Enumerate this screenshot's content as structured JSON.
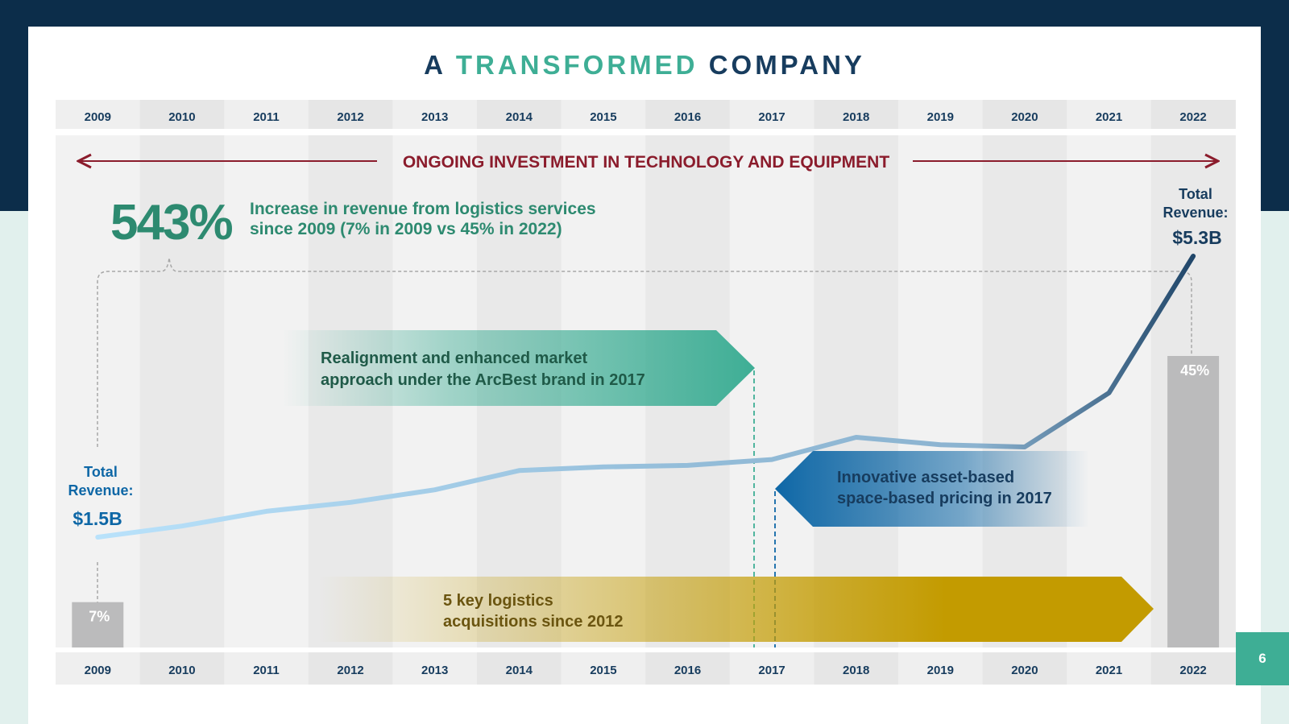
{
  "header": {
    "title_prefix": "A",
    "title_accent": "TRANSFORMED",
    "title_suffix": "COMPANY"
  },
  "investment_banner": "ONGOING INVESTMENT IN TECHNOLOGY AND EQUIPMENT",
  "growth_callout": {
    "percent": "543%",
    "line1": "Increase in revenue from logistics services",
    "line2": "since 2009 (7% in 2009 vs 45% in 2022)"
  },
  "start_revenue": {
    "label_line1": "Total",
    "label_line2": "Revenue:",
    "value": "$1.5B"
  },
  "end_revenue": {
    "label_line1": "Total",
    "label_line2": "Revenue:",
    "value": "$5.3B"
  },
  "milestones": {
    "realignment": {
      "line1": "Realignment and enhanced market",
      "line2": "approach under the ArcBest brand in 2017"
    },
    "pricing": {
      "line1": "Innovative asset-based",
      "line2": "space-based pricing in 2017"
    },
    "acquisitions": {
      "line1": "5 key logistics",
      "line2": "acquisitions since 2012"
    }
  },
  "colors": {
    "navy": "#0c2d4a",
    "teal": "#3eae95",
    "maroon": "#8b1c2c",
    "gold": "#c39b00",
    "blue": "#0e67a6",
    "bar_gray": "#bbbbbc"
  },
  "page_number": "6",
  "chart_data": {
    "type": "line",
    "title": "A TRANSFORMED COMPANY",
    "x": [
      2009,
      2010,
      2011,
      2012,
      2013,
      2014,
      2015,
      2016,
      2017,
      2018,
      2019,
      2020,
      2021,
      2022
    ],
    "x_tick_labels": [
      "2009",
      "2010",
      "2011",
      "2012",
      "2013",
      "2014",
      "2015",
      "2016",
      "2017",
      "2018",
      "2019",
      "2020",
      "2021",
      "2022"
    ],
    "series": [
      {
        "name": "Total Revenue ($B)",
        "values": [
          1.5,
          1.65,
          1.85,
          1.97,
          2.14,
          2.4,
          2.45,
          2.47,
          2.55,
          2.85,
          2.75,
          2.72,
          3.45,
          5.3
        ]
      }
    ],
    "ylim": [
      0,
      5.6
    ],
    "logistics_share_bars": {
      "categories": [
        "2009",
        "2022"
      ],
      "values": [
        7,
        45
      ],
      "labels": [
        "7%",
        "45%"
      ],
      "unit": "%"
    },
    "annotations": [
      "ONGOING INVESTMENT IN TECHNOLOGY AND EQUIPMENT",
      "543% Increase in revenue from logistics services since 2009 (7% in 2009 vs 45% in 2022)",
      "Realignment and enhanced market approach under the ArcBest brand in 2017",
      "Innovative asset-based space-based pricing in 2017",
      "5 key logistics acquisitions since 2012"
    ]
  }
}
